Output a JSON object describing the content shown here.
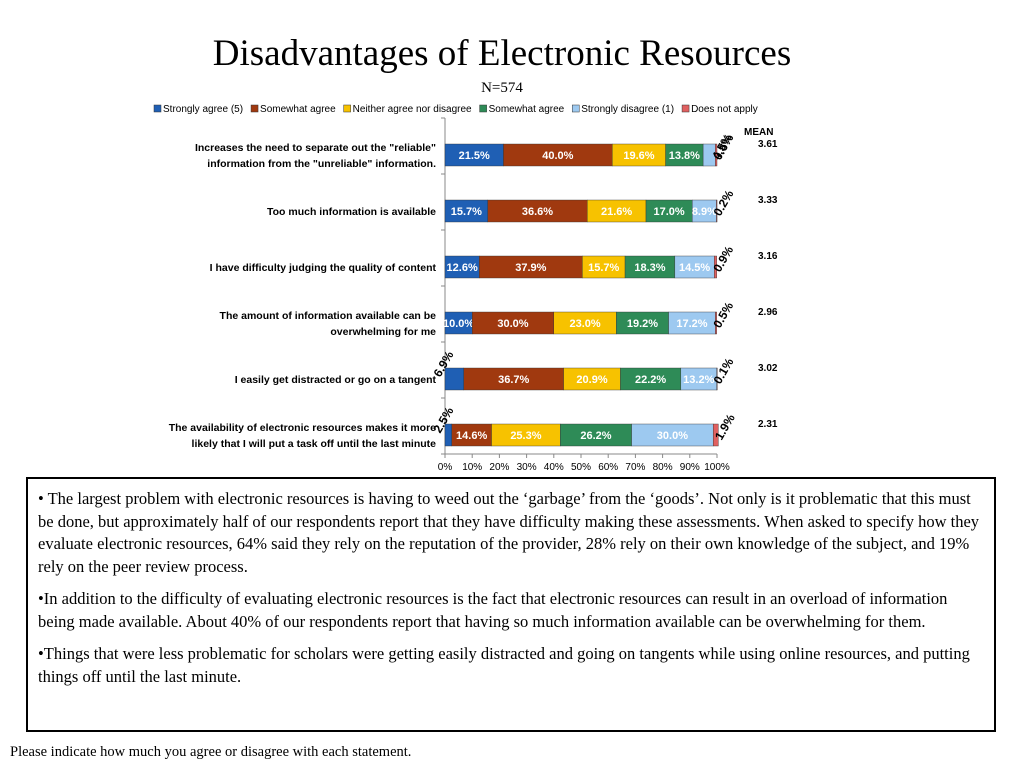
{
  "slide": {
    "title": "Disadvantages of Electronic Resources",
    "subtitle": "N=574",
    "paragraphs": [
      "• The largest problem with electronic resources is having to weed out the ‘garbage’ from the ‘goods’.  Not only is it problematic that this must be done, but approximately half of our respondents report that they have difficulty making these assessments. When asked to specify how they evaluate electronic resources, 64% said they rely on the reputation of the provider, 28% rely on their own knowledge of the subject, and 19% rely on the peer review process.",
      "•In addition to the difficulty of evaluating electronic resources is the fact that electronic resources can result in an overload of information being made available.  About 40% of our respondents report that having so much information available can be overwhelming for them.",
      "•Things that were less problematic for scholars were getting easily distracted and going on tangents while using online resources, and putting things off until the last minute."
    ],
    "footnote": "Please indicate how much you agree or disagree with each statement."
  },
  "chart_data": {
    "type": "bar",
    "orientation": "horizontal",
    "stacked": true,
    "legend_position": "top",
    "xlim": [
      0,
      100
    ],
    "x_ticks": [
      "0%",
      "10%",
      "20%",
      "30%",
      "40%",
      "50%",
      "60%",
      "70%",
      "80%",
      "90%",
      "100%"
    ],
    "mean_header": "MEAN",
    "categories": [
      {
        "lines": [
          "Increases the need to separate out the \"reliable\"",
          "information from the \"unreliable\" information."
        ],
        "mean": "3.61"
      },
      {
        "lines": [
          "Too much information is available"
        ],
        "mean": "3.33"
      },
      {
        "lines": [
          "I have difficulty judging the quality of content"
        ],
        "mean": "3.16"
      },
      {
        "lines": [
          "The amount of information available can be",
          "overwhelming for me"
        ],
        "mean": "2.96"
      },
      {
        "lines": [
          "I easily get distracted or go on a tangent"
        ],
        "mean": "3.02"
      },
      {
        "lines": [
          "The availability of electronic resources makes it more",
          "likely that I will put a task off until the last minute"
        ],
        "mean": "2.31"
      }
    ],
    "series": [
      {
        "name": "Strongly agree (5)",
        "color": "#1f5fb4",
        "text_color": "#ffffff",
        "values": [
          21.5,
          15.7,
          12.6,
          10.0,
          6.9,
          2.5
        ]
      },
      {
        "name": "Somewhat agree",
        "color": "#a0390f",
        "text_color": "#ffffff",
        "values": [
          40.0,
          36.6,
          37.9,
          30.0,
          36.7,
          14.6
        ]
      },
      {
        "name": "Neither agree nor disagree",
        "color": "#f7c200",
        "text_color": "#ffffff",
        "values": [
          19.6,
          21.6,
          15.7,
          23.0,
          20.9,
          25.3
        ]
      },
      {
        "name": "Somewhat agree",
        "color": "#2e8b57",
        "text_color": "#ffffff",
        "values": [
          13.8,
          17.0,
          18.3,
          19.2,
          22.2,
          26.2
        ]
      },
      {
        "name": "Strongly disagree (1)",
        "color": "#9dc9f0",
        "text_color": "#ffffff",
        "values": [
          4.5,
          8.9,
          14.5,
          17.2,
          13.2,
          30.0
        ]
      },
      {
        "name": "Does not apply",
        "color": "#e06060",
        "text_color": "#000000",
        "values": [
          0.6,
          0.2,
          0.9,
          0.5,
          0.1,
          1.9
        ]
      }
    ]
  }
}
